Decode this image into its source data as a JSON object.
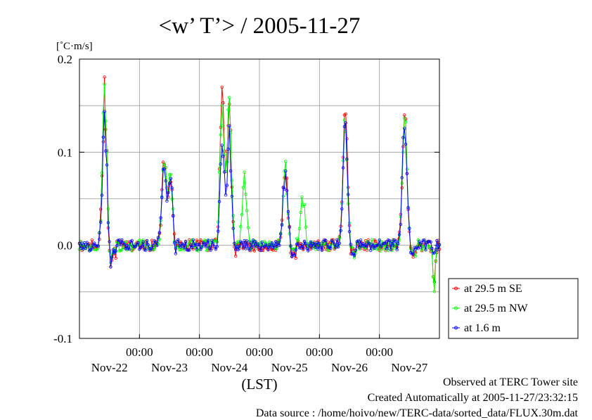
{
  "chart_data": {
    "type": "line",
    "title": "<w’ T’> / 2005-11-27",
    "ylabel": "[˚C·m/s]",
    "xlabel": "(LST)",
    "ylim": [
      -0.1,
      0.2
    ],
    "yticks": [
      "0.2",
      "0.1",
      "0.0",
      "-0.1"
    ],
    "xlim_days": [
      0,
      6
    ],
    "xtick_time_label": "00:00",
    "xtick_day_labels": [
      "Nov-22",
      "Nov-23",
      "Nov-24",
      "Nov-25",
      "Nov-26",
      "Nov-27"
    ],
    "grid": true,
    "legend_position": "right",
    "series": [
      {
        "name": "at 29.5 m SE",
        "color": "#ff0000",
        "peaks": [
          [
            0.42,
            0.175
          ],
          [
            0.5,
            -0.028
          ],
          [
            1.41,
            0.095
          ],
          [
            1.52,
            0.087
          ],
          [
            2.38,
            0.18
          ],
          [
            2.5,
            0.17
          ],
          [
            3.43,
            0.08
          ],
          [
            4.43,
            0.145
          ],
          [
            5.42,
            0.148
          ],
          [
            5.91,
            -0.05
          ]
        ],
        "seed": 11
      },
      {
        "name": "at 29.5 m NW",
        "color": "#00ff00",
        "peaks": [
          [
            0.42,
            0.182
          ],
          [
            0.5,
            -0.03
          ],
          [
            1.41,
            0.09
          ],
          [
            1.52,
            0.088
          ],
          [
            2.38,
            0.175
          ],
          [
            2.5,
            0.177
          ],
          [
            2.75,
            0.078
          ],
          [
            3.43,
            0.081
          ],
          [
            3.72,
            0.062
          ],
          [
            4.43,
            0.14
          ],
          [
            5.42,
            0.146
          ],
          [
            5.91,
            -0.053
          ]
        ],
        "seed": 23
      },
      {
        "name": "at 1.6 m",
        "color": "#0000ff",
        "peaks": [
          [
            0.42,
            0.14
          ],
          [
            0.5,
            -0.02
          ],
          [
            1.41,
            0.085
          ],
          [
            1.52,
            0.08
          ],
          [
            2.38,
            0.12
          ],
          [
            2.5,
            0.13
          ],
          [
            3.43,
            0.078
          ],
          [
            4.43,
            0.135
          ],
          [
            5.42,
            0.138
          ],
          [
            5.91,
            -0.015
          ]
        ],
        "seed": 37
      }
    ]
  },
  "footer": {
    "line1": "Observed at TERC Tower site",
    "line2": "Created Automatically at 2005-11-27/23:32:15",
    "line3": "Data source : /home/hoivo/new/TERC-data/sorted_data/FLUX.30m.dat"
  }
}
